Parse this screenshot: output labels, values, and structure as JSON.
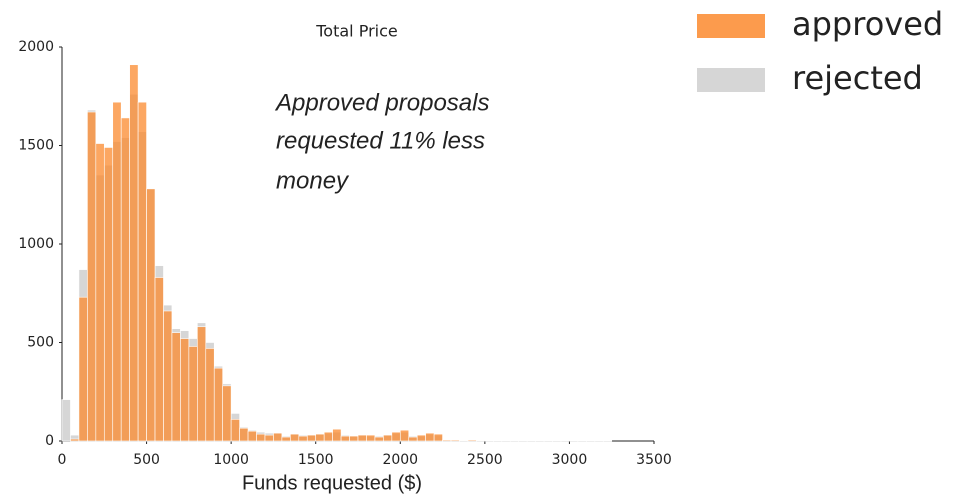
{
  "chart_data": {
    "type": "histogram",
    "title": "Total Price",
    "x_label": "Funds requested ($)",
    "annotation": [
      "Approved proposals",
      "requested 11% less",
      "money"
    ],
    "bins": [
      0,
      50,
      100,
      150,
      200,
      250,
      300,
      350,
      400,
      450,
      500,
      550,
      600,
      650,
      700,
      750,
      800,
      850,
      900,
      950,
      1000,
      1050,
      1100,
      1150,
      1200,
      1250,
      1300,
      1350,
      1400,
      1450,
      1500,
      1550,
      1600,
      1650,
      1700,
      1750,
      1800,
      1850,
      1900,
      1950,
      2000,
      2050,
      2100,
      2150,
      2200,
      2250,
      2300,
      2350,
      2400,
      2450,
      2500,
      2550,
      2600,
      2650,
      2700,
      2750,
      2800,
      2850,
      2900,
      2950,
      3000,
      3050,
      3100,
      3150,
      3200,
      3250,
      3300,
      3350,
      3400,
      3450,
      3500
    ],
    "series": [
      {
        "name": "rejected",
        "color": "#d6d6d6",
        "values": [
          210,
          30,
          870,
          1680,
          1350,
          1400,
          1520,
          1540,
          1760,
          1570,
          1280,
          890,
          690,
          570,
          560,
          520,
          600,
          500,
          380,
          290,
          140,
          70,
          55,
          45,
          40,
          40,
          25,
          35,
          30,
          30,
          35,
          40,
          45,
          30,
          25,
          30,
          25,
          25,
          30,
          40,
          45,
          25,
          25,
          35,
          30,
          5,
          5,
          3,
          5,
          3,
          2,
          2,
          2,
          1,
          1,
          1,
          1,
          1,
          1,
          1,
          1,
          1,
          1,
          1,
          1,
          0,
          0,
          0,
          0,
          0
        ]
      },
      {
        "name": "approved",
        "color": "#fb8a2e",
        "values": [
          0,
          10,
          730,
          1670,
          1510,
          1490,
          1720,
          1640,
          1910,
          1720,
          1280,
          830,
          660,
          550,
          520,
          480,
          580,
          470,
          370,
          280,
          110,
          65,
          50,
          35,
          30,
          40,
          20,
          35,
          25,
          30,
          35,
          45,
          60,
          25,
          25,
          30,
          30,
          20,
          30,
          45,
          55,
          20,
          30,
          40,
          35,
          5,
          5,
          3,
          5,
          3,
          2,
          2,
          2,
          1,
          1,
          1,
          1,
          1,
          1,
          1,
          1,
          1,
          1,
          1,
          1,
          0,
          0,
          0,
          0,
          0
        ]
      }
    ],
    "xlim": [
      0,
      3500
    ],
    "xticks": [
      0,
      500,
      1000,
      1500,
      2000,
      2500,
      3000,
      3500
    ],
    "ylim": [
      0,
      2000
    ],
    "yticks": [
      0,
      500,
      1000,
      1500,
      2000
    ],
    "grid": false,
    "legend": "upper right"
  }
}
